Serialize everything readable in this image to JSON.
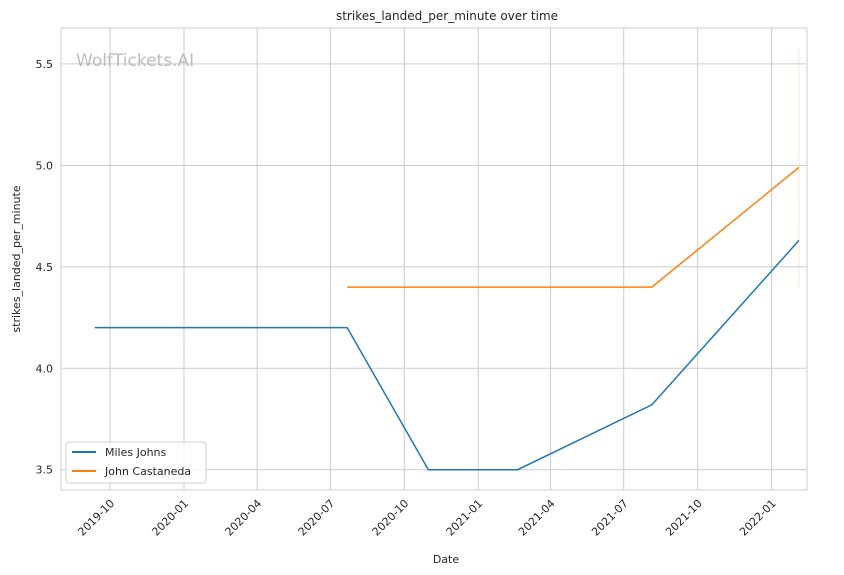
{
  "chart_data": {
    "type": "line",
    "title": "strikes_landed_per_minute over time",
    "xlabel": "Date",
    "ylabel": "strikes_landed_per_minute",
    "watermark": "WolfTickets.AI",
    "xlim": [
      "2019-08-01",
      "2022-02-14"
    ],
    "ylim": [
      3.4,
      5.677
    ],
    "grid": true,
    "legend_position": "lower-left",
    "x_ticks": [
      "2019-10",
      "2020-01",
      "2020-04",
      "2020-07",
      "2020-10",
      "2021-01",
      "2021-04",
      "2021-07",
      "2021-10",
      "2022-01"
    ],
    "y_ticks": [
      "3.5",
      "4.0",
      "4.5",
      "5.0",
      "5.5"
    ],
    "series": [
      {
        "name": "Miles Johns",
        "color": "#1f77b4",
        "x": [
          "2019-09-12",
          "2020-07-22",
          "2020-10-31",
          "2021-02-19",
          "2021-08-05",
          "2022-02-04"
        ],
        "y": [
          4.2,
          4.2,
          3.5,
          3.5,
          3.82,
          4.63
        ]
      },
      {
        "name": "John Castaneda",
        "color": "#ff7f0e",
        "x": [
          "2020-07-22",
          "2021-08-05",
          "2022-02-04"
        ],
        "y": [
          4.4,
          4.4,
          4.99
        ]
      }
    ],
    "band": {
      "x": "2022-02-04",
      "y_range": [
        4.4,
        5.57
      ],
      "color": "#ff7f0e"
    }
  }
}
